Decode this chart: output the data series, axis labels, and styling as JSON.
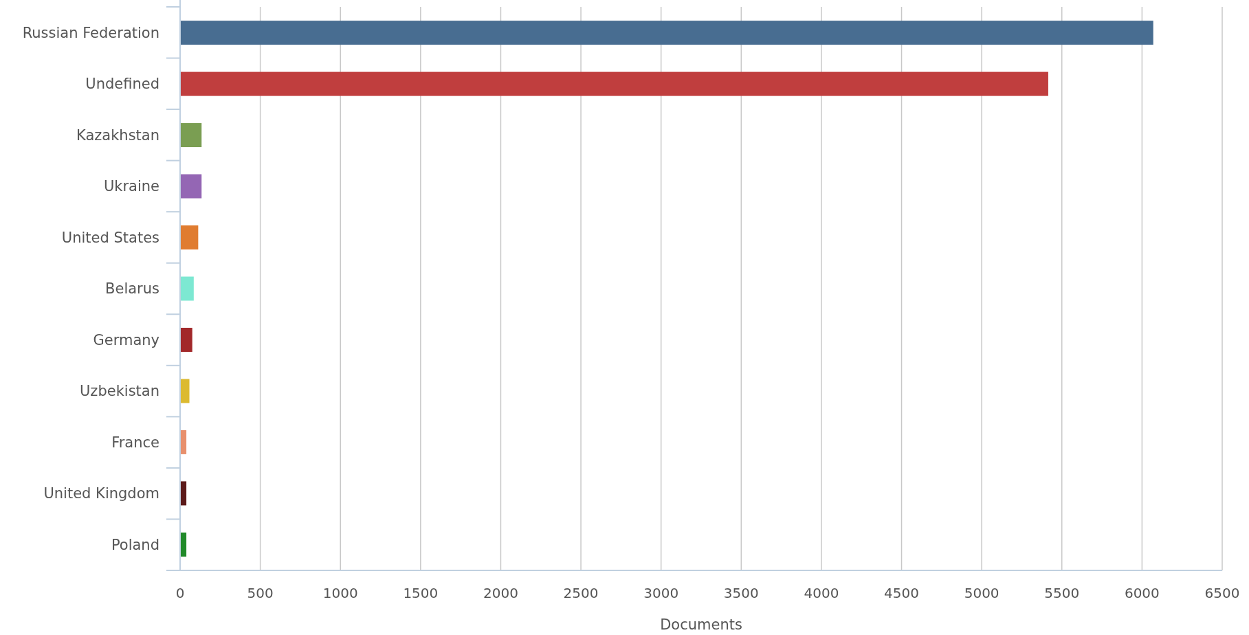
{
  "chart_data": {
    "type": "bar",
    "orientation": "horizontal",
    "xlabel": "Documents",
    "categories": [
      "Russian Federation",
      "Undefined",
      "Kazakhstan",
      "Ukraine",
      "United States",
      "Belarus",
      "Germany",
      "Uzbekistan",
      "France",
      "United Kingdom",
      "Poland"
    ],
    "values": [
      6070,
      5415,
      134,
      134,
      113,
      85,
      76,
      58,
      39,
      39,
      39
    ],
    "colors": [
      "#486d91",
      "#c03e3e",
      "#7a9e52",
      "#9466b4",
      "#e07c30",
      "#7de8d2",
      "#a2282a",
      "#dcba30",
      "#e8906d",
      "#5c1a1a",
      "#218a2a"
    ],
    "xlim": [
      0,
      6500
    ],
    "xticks": [
      0,
      500,
      1000,
      1500,
      2000,
      2500,
      3000,
      3500,
      4000,
      4500,
      5000,
      5500,
      6000,
      6500
    ],
    "grid": "x"
  }
}
